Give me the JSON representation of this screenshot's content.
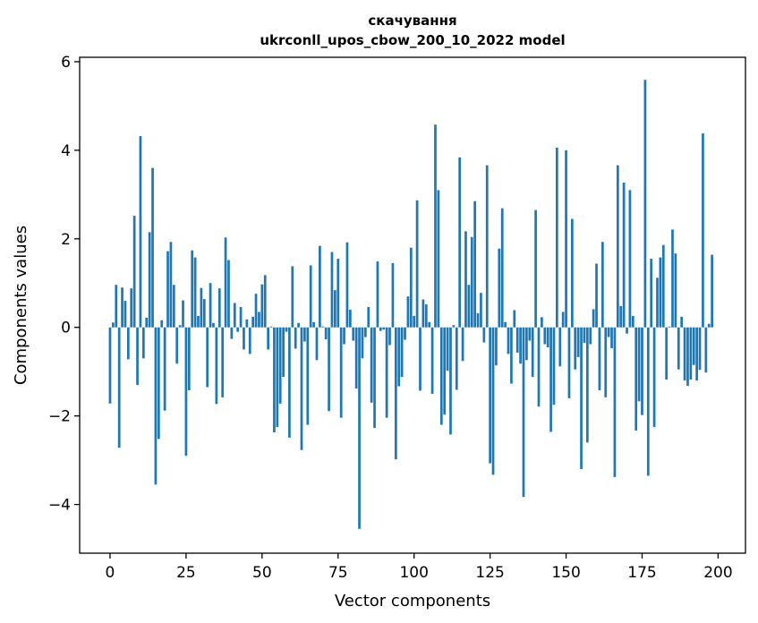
{
  "chart_data": {
    "type": "bar",
    "title": "скачування",
    "subtitle": "ukrconll_upos_cbow_200_10_2022 model",
    "xlabel": "Vector components",
    "ylabel": "Components values",
    "xlim": [
      -10,
      209
    ],
    "ylim": [
      -5.1,
      6.1
    ],
    "xticks": [
      0,
      25,
      50,
      75,
      100,
      125,
      150,
      175,
      200
    ],
    "yticks": [
      -4,
      -2,
      0,
      2,
      4,
      6
    ],
    "xtick_labels": [
      "0",
      "25",
      "50",
      "75",
      "100",
      "125",
      "150",
      "175",
      "200"
    ],
    "ytick_labels": [
      "−4",
      "−2",
      "0",
      "2",
      "4",
      "6"
    ],
    "bar_color": "#1f77b4",
    "grid": false,
    "values": [
      -1.72,
      0.11,
      0.96,
      -2.72,
      0.9,
      0.6,
      -0.72,
      0.88,
      2.52,
      -1.3,
      4.32,
      -0.7,
      0.22,
      2.15,
      3.6,
      -3.55,
      -2.52,
      0.16,
      -1.88,
      1.72,
      1.93,
      0.96,
      -0.82,
      0.05,
      0.61,
      -2.9,
      -1.42,
      1.74,
      1.58,
      0.26,
      0.89,
      0.64,
      -1.35,
      1.0,
      0.1,
      -1.73,
      0.88,
      -1.58,
      2.03,
      1.52,
      -0.26,
      0.55,
      -0.1,
      0.46,
      -0.5,
      0.18,
      -0.6,
      0.24,
      0.76,
      0.35,
      0.97,
      1.18,
      -0.5,
      0.02,
      -2.37,
      -2.25,
      -1.72,
      -1.12,
      -0.1,
      -2.49,
      1.38,
      -0.48,
      0.1,
      -2.77,
      -0.32,
      -2.2,
      1.4,
      0.12,
      -0.74,
      1.84,
      0.02,
      -0.27,
      -1.89,
      1.7,
      0.84,
      1.55,
      -2.04,
      -0.38,
      1.92,
      0.4,
      -0.3,
      -1.38,
      -4.55,
      -0.7,
      -0.22,
      0.46,
      -1.7,
      -2.27,
      1.49,
      -0.08,
      -0.05,
      -2.04,
      -0.4,
      1.45,
      -2.98,
      -1.33,
      -1.12,
      -0.28,
      0.7,
      1.8,
      0.26,
      2.87,
      -1.43,
      0.63,
      0.52,
      0.12,
      -1.5,
      4.58,
      3.1,
      -2.2,
      -1.97,
      -0.98,
      -2.42,
      0.05,
      -1.41,
      3.84,
      -0.76,
      2.17,
      0.96,
      2.04,
      2.85,
      0.32,
      0.78,
      -0.34,
      3.66,
      -3.07,
      -3.33,
      -0.86,
      1.78,
      2.69,
      0.12,
      -0.6,
      -1.27,
      0.39,
      -0.57,
      -0.82,
      -3.83,
      -0.74,
      -0.3,
      -1.12,
      2.65,
      -1.79,
      0.23,
      -0.38,
      -0.45,
      -2.36,
      -1.75,
      4.06,
      -0.88,
      0.35,
      4.0,
      -1.6,
      2.45,
      -0.95,
      -0.67,
      -3.2,
      -0.35,
      -2.6,
      -0.38,
      0.41,
      1.44,
      -1.42,
      1.93,
      -1.58,
      -0.22,
      -0.47,
      -3.38,
      3.66,
      0.48,
      3.27,
      -0.14,
      3.1,
      0.26,
      -2.33,
      -1.67,
      -1.98,
      5.59,
      -3.35,
      1.55,
      -2.25,
      1.12,
      1.58,
      1.86,
      -1.18,
      0.02,
      2.21,
      1.67,
      -0.95,
      0.24,
      -1.2,
      -1.32,
      -1.18,
      -0.85,
      -1.2,
      -0.96,
      4.38,
      -1.02,
      0.08,
      1.64
    ]
  }
}
